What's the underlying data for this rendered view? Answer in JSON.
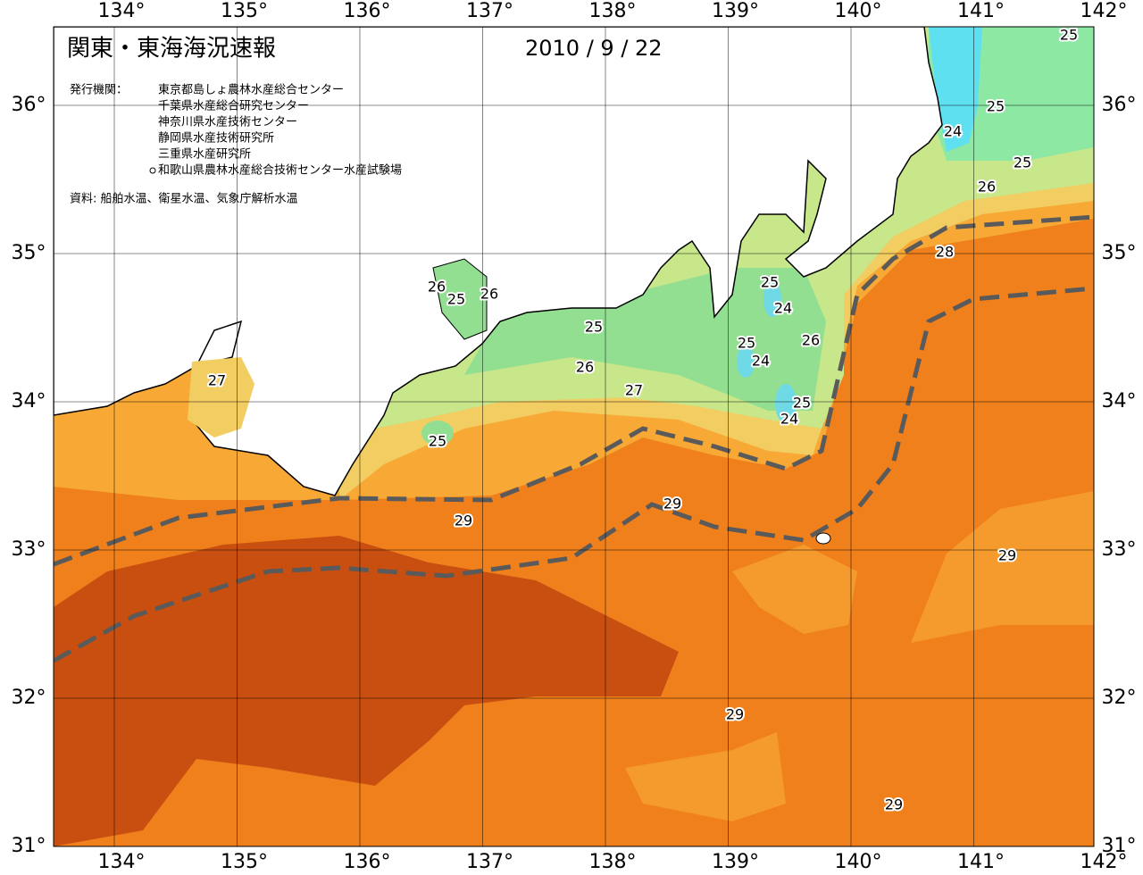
{
  "header": {
    "title": "関東・東海海況速報",
    "date": "2010 / 9 / 22",
    "issuer_heading": "発行機関：",
    "issuers": [
      "東京都島しょ農林水産総合センター",
      "千葉県水産総合研究センター",
      "神奈川県水産技術センター",
      "静岡県水産技術研究所",
      "三重県水産研究所",
      "和歌山県農林水産総合技術センター水産試験場"
    ],
    "source": "資料: 船舶水温、衛星水温、気象庁解析水温"
  },
  "map": {
    "lon_ticks": [
      {
        "value": 134,
        "label": "134°"
      },
      {
        "value": 135,
        "label": "135°"
      },
      {
        "value": 136,
        "label": "136°"
      },
      {
        "value": 137,
        "label": "137°"
      },
      {
        "value": 138,
        "label": "138°"
      },
      {
        "value": 139,
        "label": "139°"
      },
      {
        "value": 140,
        "label": "140°"
      },
      {
        "value": 141,
        "label": "141°"
      },
      {
        "value": 142,
        "label": "142°"
      }
    ],
    "lat_ticks": [
      {
        "value": 36,
        "label": "36°"
      },
      {
        "value": 35,
        "label": "35°"
      },
      {
        "value": 34,
        "label": "34°"
      },
      {
        "value": 33,
        "label": "33°"
      },
      {
        "value": 32,
        "label": "32°"
      },
      {
        "value": 31,
        "label": "31°"
      }
    ],
    "contour_labels": [
      25,
      25,
      24,
      25,
      26,
      28,
      26,
      25,
      26,
      25,
      24,
      25,
      25,
      26,
      24,
      26,
      27,
      27,
      25,
      24,
      25,
      29,
      29,
      29,
      29,
      29
    ]
  }
}
